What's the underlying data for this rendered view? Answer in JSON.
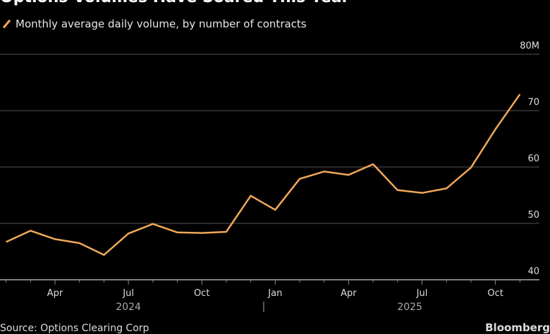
{
  "chart_data": {
    "type": "line",
    "title": "Options Volumes Have Soared This Year",
    "legend": "Monthly average daily volume, by number of contracts",
    "x": [
      "2024-02",
      "2024-03",
      "2024-04",
      "2024-05",
      "2024-06",
      "2024-07",
      "2024-08",
      "2024-09",
      "2024-10",
      "2024-11",
      "2024-12",
      "2025-01",
      "2025-02",
      "2025-03",
      "2025-04",
      "2025-05",
      "2025-06",
      "2025-07",
      "2025-08",
      "2025-09",
      "2025-10",
      "2025-11"
    ],
    "series": [
      {
        "name": "Monthly average daily volume",
        "values": [
          46.7,
          48.7,
          47.2,
          46.5,
          44.4,
          48.2,
          49.9,
          48.4,
          48.3,
          48.5,
          54.9,
          52.4,
          57.9,
          59.2,
          58.6,
          60.5,
          55.9,
          55.4,
          56.2,
          59.9,
          66.7,
          72.9
        ],
        "color": "#f0a858"
      }
    ],
    "ylim": [
      40,
      80
    ],
    "yticks": [
      {
        "v": 80,
        "label": "80M"
      },
      {
        "v": 70,
        "label": "70"
      },
      {
        "v": 60,
        "label": "60"
      },
      {
        "v": 50,
        "label": "50"
      },
      {
        "v": 40,
        "label": "40"
      }
    ],
    "xticks": [
      {
        "m": 2,
        "label": "Apr"
      },
      {
        "m": 5,
        "label": "Jul"
      },
      {
        "m": 8,
        "label": "Oct"
      },
      {
        "m": 11,
        "label": "Jan"
      },
      {
        "m": 14,
        "label": "Apr"
      },
      {
        "m": 17,
        "label": "Jul"
      },
      {
        "m": 20,
        "label": "Oct"
      }
    ],
    "years": [
      {
        "m": 5,
        "label": "2024"
      },
      {
        "m": 16.5,
        "label": "2025"
      }
    ],
    "source": "Source: Options Clearing Corp",
    "brand": "Bloomberg"
  }
}
